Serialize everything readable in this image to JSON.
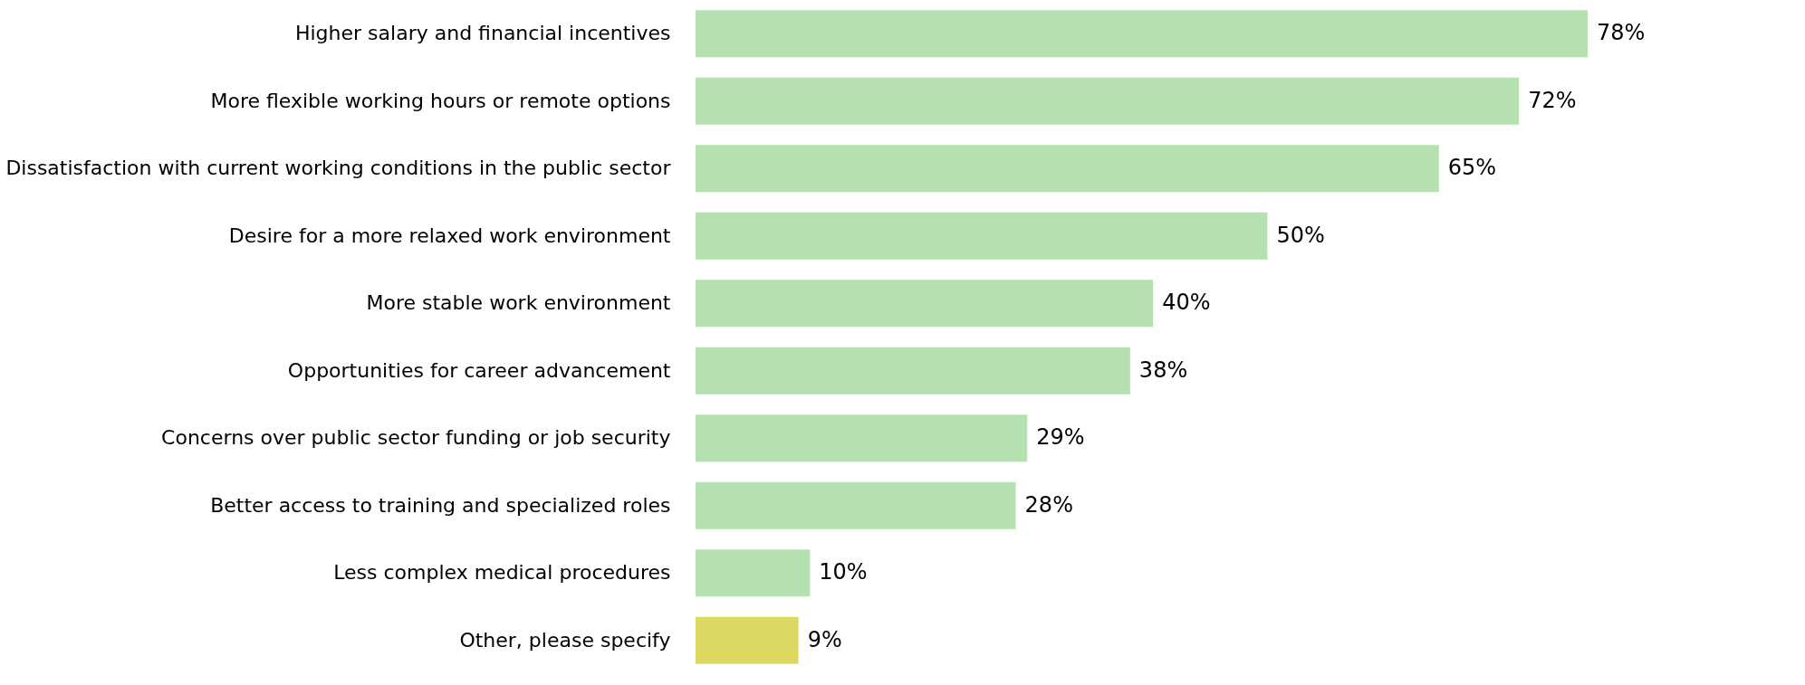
{
  "chart_data": {
    "type": "bar",
    "orientation": "horizontal",
    "categories": [
      "Higher salary and financial incentives",
      "More flexible working hours or remote options",
      "Dissatisfaction with current working conditions in the public sector",
      "Desire for a more relaxed work environment",
      "More stable work environment",
      "Opportunities for career advancement",
      "Concerns over public sector funding or job security",
      "Better access to training and specialized roles",
      "Less complex medical procedures",
      "Other, please specify"
    ],
    "values": [
      78,
      72,
      65,
      50,
      40,
      38,
      29,
      28,
      10,
      9
    ],
    "value_labels": [
      "78%",
      "72%",
      "65%",
      "50%",
      "40%",
      "38%",
      "29%",
      "28%",
      "10%",
      "9%"
    ],
    "colors": [
      "#b5e0af",
      "#b5e0af",
      "#b5e0af",
      "#b5e0af",
      "#b5e0af",
      "#b5e0af",
      "#b5e0af",
      "#b5e0af",
      "#b5e0af",
      "#dcd962"
    ]
  }
}
